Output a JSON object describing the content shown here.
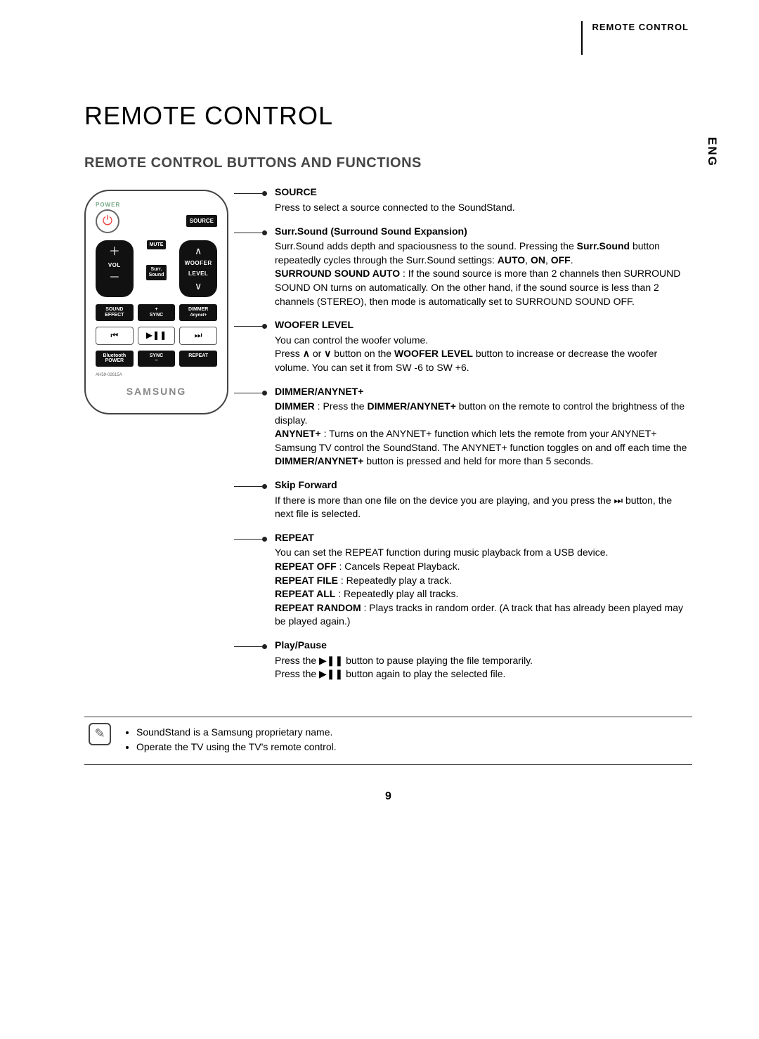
{
  "header": {
    "section": "REMOTE CONTROL",
    "lang": "ENG"
  },
  "titles": {
    "main": "REMOTE CONTROL",
    "sub": "REMOTE CONTROL BUTTONS AND FUNCTIONS"
  },
  "remote": {
    "power_label": "POWER",
    "source": "SOURCE",
    "mute": "MUTE",
    "vol": "VOL",
    "woofer": "WOOFER",
    "level": "LEVEL",
    "surr": "Surr.\nSound",
    "sound_effect": "SOUND\nEFFECT",
    "sync_plus": "+\nSYNC",
    "dimmer": "DIMMER",
    "anynet": "Anynet+",
    "bt_power": "Bluetooth\nPOWER",
    "sync_minus": "SYNC\n−",
    "repeat": "REPEAT",
    "prev": "⏮",
    "play": "▶❚❚",
    "next": "⏭",
    "model": "AH59-02615A",
    "brand": "SAMSUNG"
  },
  "descs": [
    {
      "title": "SOURCE",
      "body": "Press to select a source connected to the SoundStand."
    },
    {
      "title": "Surr.Sound (Surround Sound Expansion)",
      "body": "Surr.Sound adds depth and spaciousness to the sound. Pressing the <b>Surr.Sound</b> button repeatedly cycles through the Surr.Sound settings: <b>AUTO</b>, <b>ON</b>, <b>OFF</b>.<br><b>SURROUND SOUND AUTO</b> : If the sound source is more than 2 channels then SURROUND SOUND ON turns on automatically. On the other hand, if the sound source is less than 2 channels (STEREO), then mode is automatically set to SURROUND SOUND OFF."
    },
    {
      "title": "WOOFER LEVEL",
      "body": "You can control the woofer volume.<br>Press <b class=\"chev\">∧</b> or <b class=\"chev\">∨</b> button on the <b>WOOFER LEVEL</b> button to increase or decrease the woofer volume. You can set it from SW -6 to SW +6."
    },
    {
      "title": "DIMMER/ANYNET+",
      "body": "<b>DIMMER</b> : Press the <b>DIMMER/ANYNET+</b> button on the remote to control the brightness of the display.<br><b>ANYNET+</b> : Turns on the ANYNET+ function which lets the remote from your ANYNET+ Samsung TV control the SoundStand. The ANYNET+ function toggles on and off each time the <b>DIMMER/ANYNET+</b> button is pressed and held for more than 5 seconds."
    },
    {
      "title": "Skip Forward",
      "body": "If there is more than one file on the device you are playing, and you press the ⏭ button, the next file is selected."
    },
    {
      "title": "REPEAT",
      "body": "You can set the REPEAT function during music playback from a USB device.<br><b>REPEAT OFF</b> : Cancels Repeat Playback.<br><b>REPEAT FILE</b> : Repeatedly play a track.<br><b>REPEAT ALL</b> : Repeatedly play all tracks.<br><b>REPEAT RANDOM</b> : Plays tracks in random order. (A track that has already been played may be played again.)"
    },
    {
      "title": "Play/Pause",
      "body": "Press the ▶❚❚ button to pause playing the file temporarily.<br>Press the ▶❚❚ button again to play the selected file."
    }
  ],
  "notes": [
    "SoundStand is a Samsung proprietary name.",
    "Operate the TV using the TV's remote control."
  ],
  "page": "9"
}
